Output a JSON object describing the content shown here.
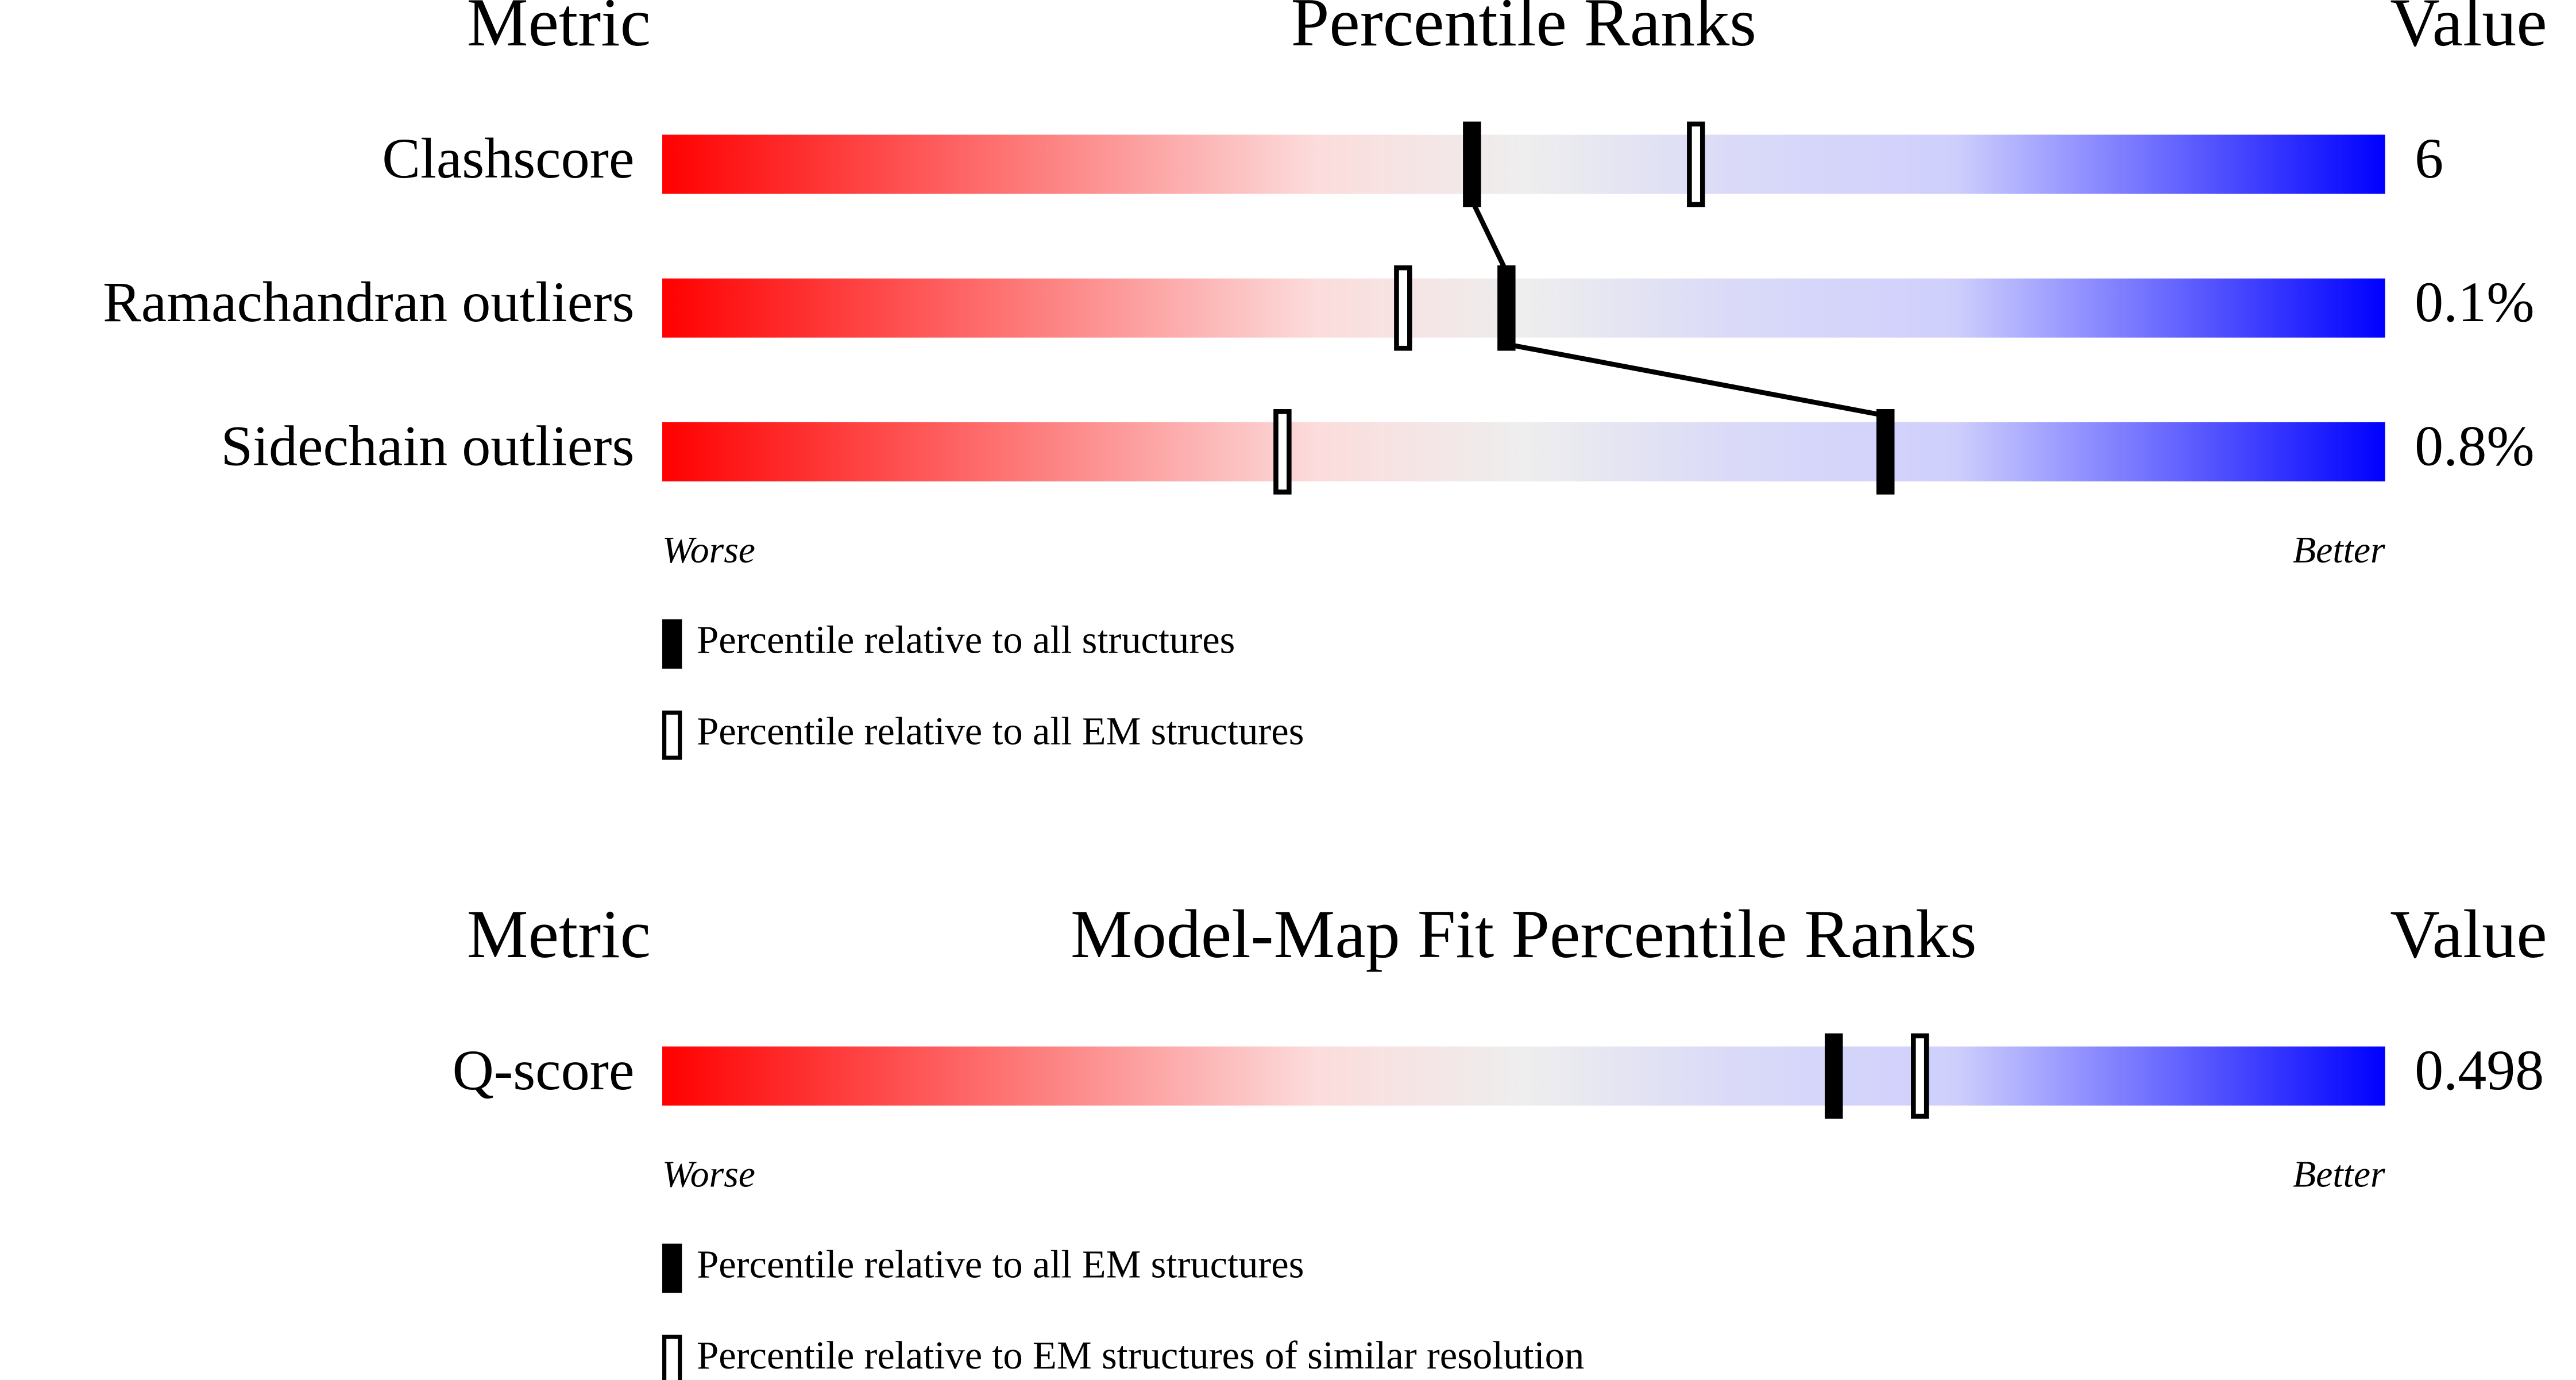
{
  "chart_data": [
    {
      "type": "percentile_slider",
      "metric_header": "Metric",
      "title": "Percentile Ranks",
      "value_header": "Value",
      "categories": [
        "Clashscore",
        "Ramachandran outliers",
        "Sidechain outliers"
      ],
      "metric_values": [
        "6",
        "0.1%",
        "0.8%"
      ],
      "xlim": [
        0,
        100
      ],
      "series": [
        {
          "name": "Percentile relative to all structures",
          "style": "filled",
          "color": "#000000",
          "values": [
            47,
            49,
            71
          ]
        },
        {
          "name": "Percentile relative to all EM structures",
          "style": "hollow",
          "color": "#000000",
          "values": [
            60,
            43,
            36
          ]
        }
      ],
      "worse_label": "Worse",
      "better_label": "Better"
    },
    {
      "type": "percentile_slider",
      "metric_header": "Metric",
      "title": "Model-Map Fit Percentile Ranks",
      "value_header": "Value",
      "categories": [
        "Q-score"
      ],
      "metric_values": [
        "0.498"
      ],
      "xlim": [
        0,
        100
      ],
      "series": [
        {
          "name": "Percentile relative to all EM structures",
          "style": "filled",
          "color": "#000000",
          "values": [
            68
          ]
        },
        {
          "name": "Percentile relative to EM structures of similar resolution",
          "style": "hollow",
          "color": "#000000",
          "values": [
            73
          ]
        }
      ],
      "worse_label": "Worse",
      "better_label": "Better"
    }
  ]
}
